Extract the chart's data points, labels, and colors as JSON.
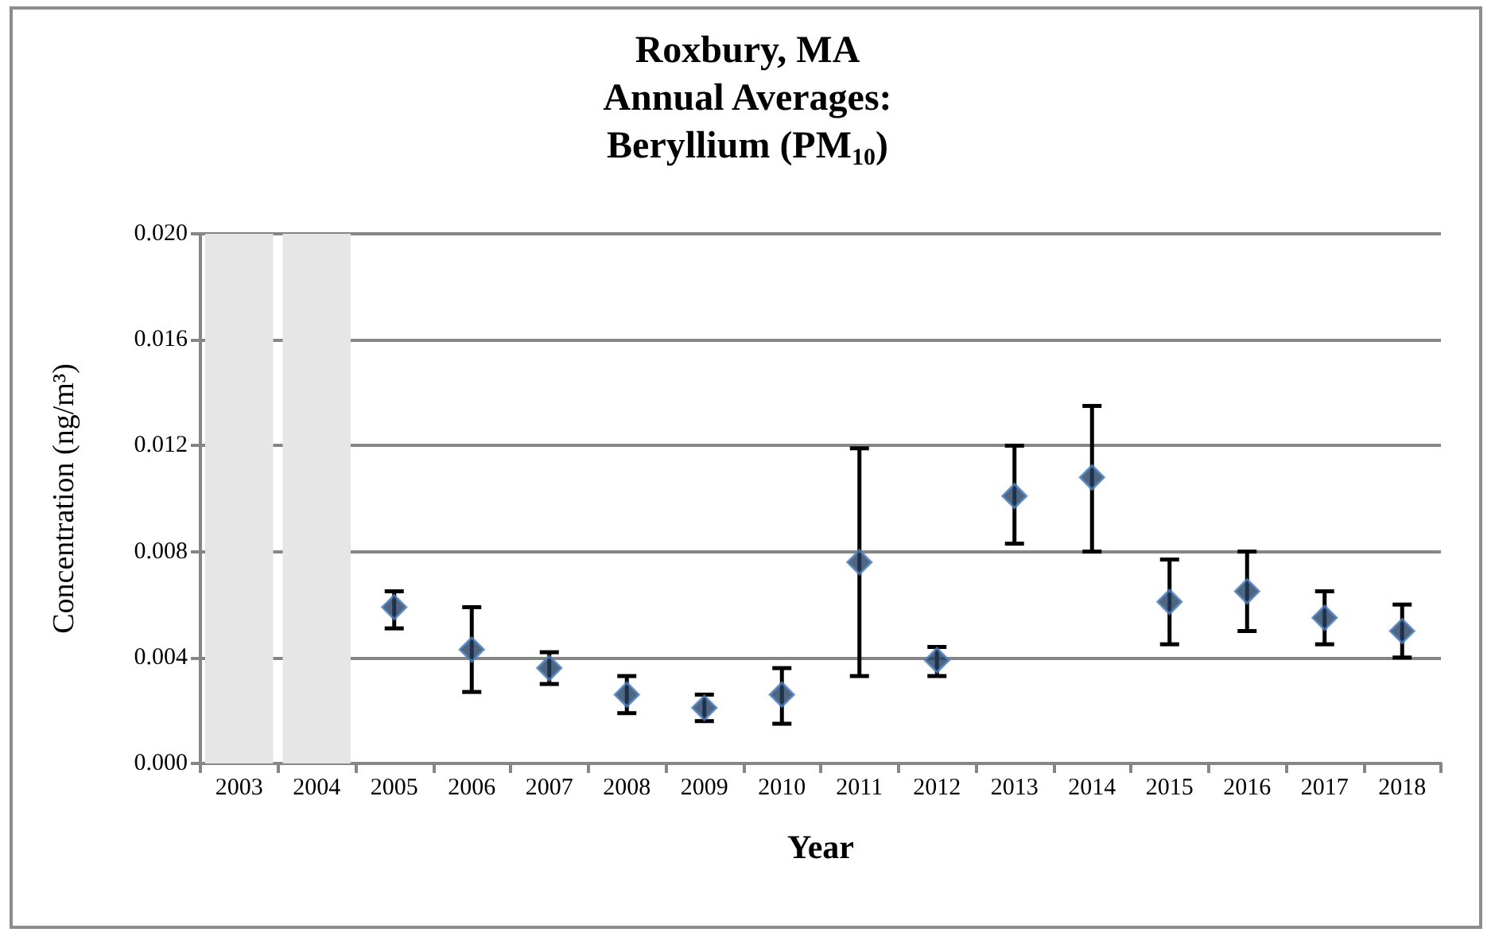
{
  "chart_data": {
    "type": "scatter",
    "title": "Roxbury, MA\nAnnual Averages:\nBeryllium (PM$_{10}$)",
    "xlabel": "Year",
    "ylabel": "Concentration (ng/m³)",
    "categories": [
      "2003",
      "2004",
      "2005",
      "2006",
      "2007",
      "2008",
      "2009",
      "2010",
      "2011",
      "2012",
      "2013",
      "2014",
      "2015",
      "2016",
      "2017",
      "2018"
    ],
    "series": [
      {
        "color": "#243f60",
        "values": [
          null,
          null,
          0.0059,
          0.0043,
          0.0036,
          0.0026,
          0.0021,
          0.0026,
          0.0076,
          0.0039,
          0.0101,
          0.0108,
          0.0061,
          0.0065,
          0.0055,
          0.005
        ],
        "errors": [
          null,
          null,
          [
            0.0051,
            0.0065
          ],
          [
            0.0027,
            0.0059
          ],
          [
            0.003,
            0.0042
          ],
          [
            0.0019,
            0.0033
          ],
          [
            0.0016,
            0.0026
          ],
          [
            0.0015,
            0.0036
          ],
          [
            0.0033,
            0.0119
          ],
          [
            0.0033,
            0.0044
          ],
          [
            0.0083,
            0.012
          ],
          [
            0.008,
            0.0135
          ],
          [
            0.0045,
            0.0077
          ],
          [
            0.005,
            0.008
          ],
          [
            0.0045,
            0.0065
          ],
          [
            0.004,
            0.006
          ]
        ]
      }
    ],
    "bands": [
      {
        "axis": "x",
        "from": "2003",
        "to": "2003",
        "color": "#e6e6e6"
      },
      {
        "axis": "x",
        "from": "2004",
        "to": "2004",
        "color": "#e6e6e6"
      }
    ],
    "ylim": [
      0,
      0.02
    ],
    "yticks": [
      {
        "value": 0,
        "label": "0.000"
      },
      {
        "value": 0.004,
        "label": "0.004"
      },
      {
        "value": 0.008,
        "label": "0.008"
      },
      {
        "value": 0.012,
        "label": "0.012"
      },
      {
        "value": 0.016,
        "label": "0.016"
      },
      {
        "value": 0.02,
        "label": "0.020"
      }
    ],
    "grid": "y",
    "marker": "diamond"
  }
}
